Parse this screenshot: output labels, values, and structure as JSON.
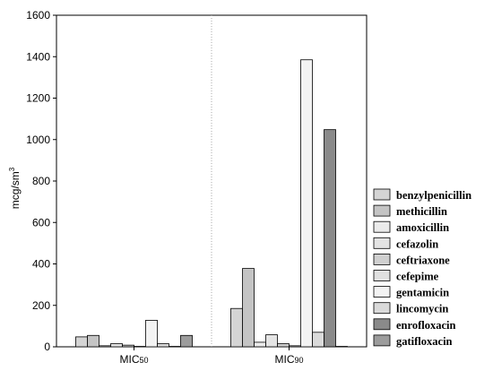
{
  "chart_data": {
    "type": "bar",
    "ylabel": "mcg/sm",
    "ylabel_sup": "3",
    "ylim": [
      0,
      1600
    ],
    "yticks": [
      "0",
      "200",
      "400",
      "600",
      "800",
      "1000",
      "1200",
      "1400",
      "1600"
    ],
    "grid": "vertical dotted divider between groups",
    "legend_position": "right",
    "categories": [
      {
        "main": "MIC",
        "sub": "50"
      },
      {
        "main": "MIC",
        "sub": "90"
      }
    ],
    "series": [
      {
        "name": "benzylpenicillin",
        "color": "#d4d4d4",
        "values": [
          48,
          185
        ]
      },
      {
        "name": "methicillin",
        "color": "#c4c4c4",
        "values": [
          55,
          378
        ]
      },
      {
        "name": "amoxicillin",
        "color": "#ebebeb",
        "values": [
          5,
          22
        ]
      },
      {
        "name": "cefazolin",
        "color": "#e4e4e4",
        "values": [
          15,
          58
        ]
      },
      {
        "name": "ceftriaxone",
        "color": "#cfcfcf",
        "values": [
          8,
          15
        ]
      },
      {
        "name": "cefepime",
        "color": "#e0e0e0",
        "values": [
          2,
          5
        ]
      },
      {
        "name": "gentamicin",
        "color": "#f3f3f3",
        "values": [
          128,
          1385
        ]
      },
      {
        "name": "lincomycin",
        "color": "#dadada",
        "values": [
          15,
          70
        ]
      },
      {
        "name": "enrofloxacin",
        "color": "#8a8a8a",
        "values": [
          2,
          1048
        ]
      },
      {
        "name": "gatifloxacin",
        "color": "#9c9c9c",
        "values": [
          55,
          2
        ]
      }
    ]
  }
}
